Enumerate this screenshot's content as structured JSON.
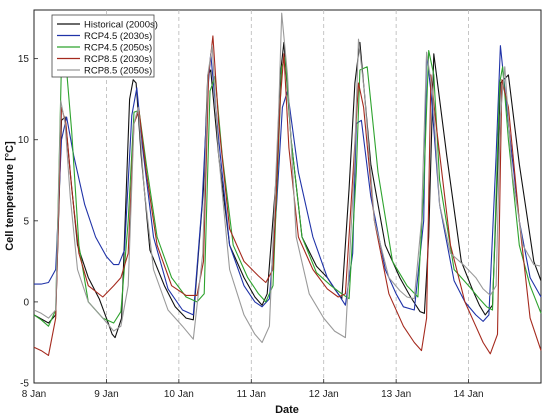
{
  "chart_data": {
    "type": "line",
    "title": "",
    "xlabel": "Date",
    "ylabel": "Cell temperature [°C]",
    "x_ticks": [
      "8 Jan",
      "9 Jan",
      "10 Jan",
      "11 Jan",
      "12 Jan",
      "13 Jan",
      "14 Jan"
    ],
    "xlim": [
      0,
      7.0
    ],
    "ylim": [
      -5,
      18
    ],
    "y_ticks": [
      -5,
      0,
      5,
      10,
      15
    ],
    "grid": "vertical-dashed",
    "legend_position": "top-left",
    "series": [
      {
        "name": "Historical (2000s)",
        "color": "#111111",
        "x": [
          0,
          0.08,
          0.2,
          0.3,
          0.38,
          0.43,
          0.5,
          0.6,
          0.75,
          0.9,
          1.0,
          1.08,
          1.12,
          1.21,
          1.32,
          1.37,
          1.41,
          1.48,
          1.6,
          1.8,
          1.95,
          2.1,
          2.2,
          2.34,
          2.4,
          2.44,
          2.55,
          2.7,
          2.9,
          3.05,
          3.15,
          3.22,
          3.35,
          3.4,
          3.45,
          3.55,
          3.7,
          3.9,
          4.05,
          4.15,
          4.25,
          4.35,
          4.43,
          4.5,
          4.65,
          4.85,
          5.05,
          5.2,
          5.33,
          5.39,
          5.45,
          5.52,
          5.7,
          5.9,
          6.05,
          6.15,
          6.23,
          6.33,
          6.4,
          6.44,
          6.55,
          6.7,
          6.9,
          7.0
        ],
        "values": [
          -0.8,
          -1.0,
          -1.3,
          -0.8,
          11.2,
          11.4,
          8.0,
          3.5,
          1.5,
          0.2,
          -1.0,
          -2.0,
          -2.2,
          -1.0,
          12.5,
          13.7,
          13.5,
          9.0,
          3.2,
          1.0,
          -0.3,
          -1.0,
          -1.1,
          7.0,
          14.0,
          14.3,
          9.0,
          3.5,
          1.5,
          0.3,
          -0.2,
          0.5,
          8.0,
          14.0,
          16.0,
          10.0,
          4.0,
          2.2,
          1.5,
          0.8,
          0.2,
          7.0,
          13.5,
          16.0,
          8.5,
          3.5,
          1.5,
          0.3,
          -0.6,
          -0.7,
          4.0,
          15.3,
          9.0,
          2.5,
          0.8,
          -0.2,
          -0.8,
          -0.2,
          8.0,
          13.5,
          14.0,
          8.5,
          2.5,
          1.3
        ]
      },
      {
        "name": "RCP4.5 (2030s)",
        "color": "#2033a8",
        "x": [
          0,
          0.1,
          0.2,
          0.3,
          0.38,
          0.45,
          0.55,
          0.7,
          0.85,
          1.0,
          1.1,
          1.17,
          1.25,
          1.35,
          1.42,
          1.5,
          1.65,
          1.85,
          2.05,
          2.2,
          2.32,
          2.4,
          2.44,
          2.55,
          2.7,
          2.9,
          3.05,
          3.15,
          3.25,
          3.35,
          3.43,
          3.5,
          3.65,
          3.85,
          4.05,
          4.2,
          4.3,
          4.4,
          4.45,
          4.52,
          4.65,
          4.85,
          5.0,
          5.1,
          5.25,
          5.38,
          5.42,
          5.48,
          5.6,
          5.8,
          5.95,
          6.1,
          6.2,
          6.28,
          6.38,
          6.44,
          6.55,
          6.7,
          6.85,
          7.0
        ],
        "values": [
          1.1,
          1.1,
          1.2,
          2.0,
          10.0,
          11.4,
          9.0,
          6.0,
          4.0,
          2.8,
          2.3,
          2.3,
          3.2,
          11.5,
          13.2,
          9.5,
          4.0,
          0.8,
          -0.5,
          -0.8,
          6.0,
          13.0,
          15.3,
          10.0,
          3.5,
          1.0,
          0.0,
          -0.3,
          0.2,
          6.0,
          12.0,
          13.0,
          8.0,
          4.0,
          1.5,
          0.5,
          -0.2,
          3.0,
          11.0,
          11.2,
          6.5,
          2.0,
          0.5,
          -0.3,
          -0.5,
          5.0,
          15.3,
          13.0,
          6.0,
          1.3,
          0.0,
          -0.8,
          -1.2,
          -0.8,
          9.0,
          15.8,
          11.0,
          5.0,
          1.5,
          0.3
        ]
      },
      {
        "name": "RCP4.5 (2050s)",
        "color": "#2ea32e",
        "x": [
          0,
          0.1,
          0.2,
          0.3,
          0.38,
          0.44,
          0.52,
          0.62,
          0.75,
          0.95,
          1.1,
          1.2,
          1.3,
          1.38,
          1.45,
          1.55,
          1.7,
          1.9,
          2.1,
          2.25,
          2.35,
          2.43,
          2.5,
          2.6,
          2.75,
          2.95,
          3.1,
          3.2,
          3.3,
          3.42,
          3.47,
          3.55,
          3.7,
          3.9,
          4.1,
          4.25,
          4.35,
          4.45,
          4.5,
          4.6,
          4.75,
          4.95,
          5.15,
          5.3,
          5.38,
          5.45,
          5.52,
          5.6,
          5.8,
          6.0,
          6.15,
          6.25,
          6.33,
          6.43,
          6.47,
          6.55,
          6.7,
          6.85,
          7.0
        ],
        "values": [
          -0.8,
          -1.1,
          -1.5,
          -0.5,
          14.8,
          14.8,
          10.5,
          3.5,
          0.0,
          -1.0,
          -1.3,
          -0.6,
          5.0,
          11.7,
          11.8,
          8.5,
          4.0,
          1.5,
          0.3,
          0.0,
          0.5,
          13.0,
          13.9,
          9.0,
          3.5,
          1.5,
          0.5,
          0.0,
          1.0,
          14.5,
          15.1,
          10.0,
          4.0,
          1.8,
          1.0,
          0.5,
          0.2,
          8.0,
          14.3,
          14.5,
          8.0,
          2.5,
          1.0,
          0.3,
          7.0,
          15.5,
          14.0,
          7.5,
          2.0,
          1.0,
          0.2,
          -0.3,
          -0.5,
          13.5,
          14.5,
          10.0,
          3.5,
          1.0,
          -0.7
        ]
      },
      {
        "name": "RCP8.5 (2030s)",
        "color": "#a52a1e",
        "x": [
          0,
          0.1,
          0.2,
          0.3,
          0.38,
          0.44,
          0.52,
          0.62,
          0.75,
          0.95,
          1.1,
          1.2,
          1.3,
          1.38,
          1.45,
          1.55,
          1.7,
          1.9,
          2.1,
          2.25,
          2.34,
          2.41,
          2.47,
          2.55,
          2.7,
          2.9,
          3.1,
          3.2,
          3.3,
          3.4,
          3.45,
          3.52,
          3.65,
          3.85,
          4.05,
          4.2,
          4.3,
          4.42,
          4.48,
          4.55,
          4.7,
          4.9,
          5.1,
          5.25,
          5.35,
          5.42,
          5.48,
          5.55,
          5.75,
          5.95,
          6.1,
          6.2,
          6.3,
          6.4,
          6.46,
          6.55,
          6.7,
          6.85,
          7.0
        ],
        "values": [
          -2.8,
          -3.0,
          -3.3,
          -1.0,
          12.0,
          11.0,
          7.0,
          3.0,
          1.0,
          0.3,
          1.0,
          1.5,
          3.0,
          11.0,
          11.8,
          8.0,
          3.5,
          1.0,
          0.4,
          0.4,
          2.5,
          14.0,
          16.4,
          11.0,
          4.5,
          2.5,
          1.6,
          1.2,
          2.0,
          12.5,
          15.3,
          9.5,
          4.0,
          2.0,
          0.8,
          0.3,
          0.5,
          9.0,
          13.5,
          12.0,
          5.0,
          0.5,
          -1.5,
          -2.5,
          -3.0,
          -1.0,
          14.0,
          11.0,
          3.5,
          0.0,
          -1.5,
          -2.5,
          -3.2,
          -2.0,
          13.7,
          12.0,
          5.0,
          -1.0,
          -3.0
        ]
      },
      {
        "name": "RCP8.5 (2050s)",
        "color": "#9a9a9a",
        "x": [
          0,
          0.1,
          0.2,
          0.3,
          0.37,
          0.43,
          0.5,
          0.6,
          0.75,
          0.95,
          1.1,
          1.2,
          1.3,
          1.38,
          1.44,
          1.52,
          1.65,
          1.85,
          2.05,
          2.2,
          2.33,
          2.4,
          2.46,
          2.55,
          2.7,
          2.9,
          3.05,
          3.15,
          3.25,
          3.38,
          3.42,
          3.5,
          3.62,
          3.8,
          4.0,
          4.15,
          4.3,
          4.42,
          4.48,
          4.56,
          4.7,
          4.9,
          5.05,
          5.15,
          5.25,
          5.35,
          5.42,
          5.5,
          5.6,
          5.75,
          5.95,
          6.1,
          6.2,
          6.3,
          6.38,
          6.44,
          6.5,
          6.6,
          6.75,
          6.9,
          7.0
        ],
        "values": [
          -0.5,
          -0.7,
          -1.0,
          -0.5,
          12.4,
          11.0,
          6.5,
          2.0,
          0.0,
          -1.0,
          -1.8,
          -1.5,
          1.0,
          11.0,
          12.0,
          7.0,
          2.0,
          -0.5,
          -1.5,
          -2.3,
          3.0,
          14.0,
          15.8,
          9.0,
          2.0,
          -0.8,
          -2.0,
          -2.5,
          -1.5,
          12.0,
          17.8,
          14.0,
          4.0,
          0.5,
          -1.0,
          -1.8,
          -2.2,
          8.0,
          16.2,
          13.0,
          5.0,
          1.5,
          0.7,
          0.3,
          0.2,
          5.0,
          15.4,
          13.0,
          6.0,
          3.0,
          2.2,
          1.5,
          0.8,
          0.4,
          1.0,
          11.5,
          14.5,
          8.0,
          3.5,
          2.3,
          2.2
        ]
      }
    ]
  }
}
